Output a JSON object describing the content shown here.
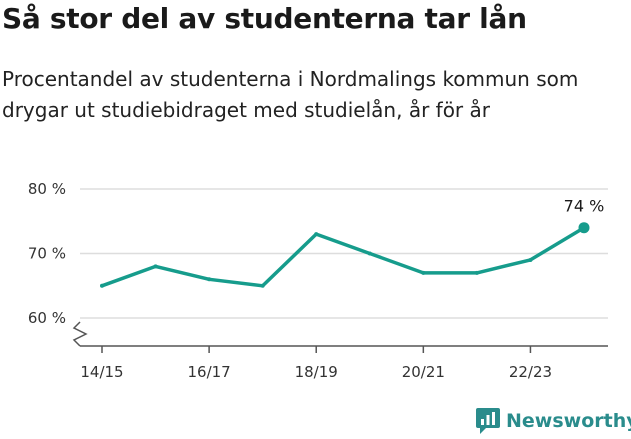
{
  "title": "Så stor del av studenterna tar lån",
  "subtitle": "Procentandel av studenterna i Nordmalings kommun som drygar ut studiebidraget med studielån, år för år",
  "brand": {
    "name": "Newsworthy",
    "color": "#2a8c8c",
    "icon": "bar-chart-logo-icon"
  },
  "colors": {
    "line": "#169c8c",
    "grid": "#dddddd",
    "axis": "#555555"
  },
  "chart_data": {
    "type": "line",
    "x": [
      "14/15",
      "15/16",
      "16/17",
      "17/18",
      "18/19",
      "19/20",
      "20/21",
      "21/22",
      "22/23",
      "23/24"
    ],
    "series": [
      {
        "values": [
          65,
          68,
          66,
          65,
          73,
          70,
          67,
          67,
          69,
          74
        ]
      }
    ],
    "xtick_labels": [
      "14/15",
      "16/17",
      "18/19",
      "20/21",
      "22/23"
    ],
    "ytick_values": [
      60,
      70,
      80
    ],
    "ytick_labels": [
      "60 %",
      "70 %",
      "80 %"
    ],
    "ylim": [
      60,
      80
    ],
    "axis_break": true,
    "grid": true,
    "last_point_label": "74 %"
  }
}
